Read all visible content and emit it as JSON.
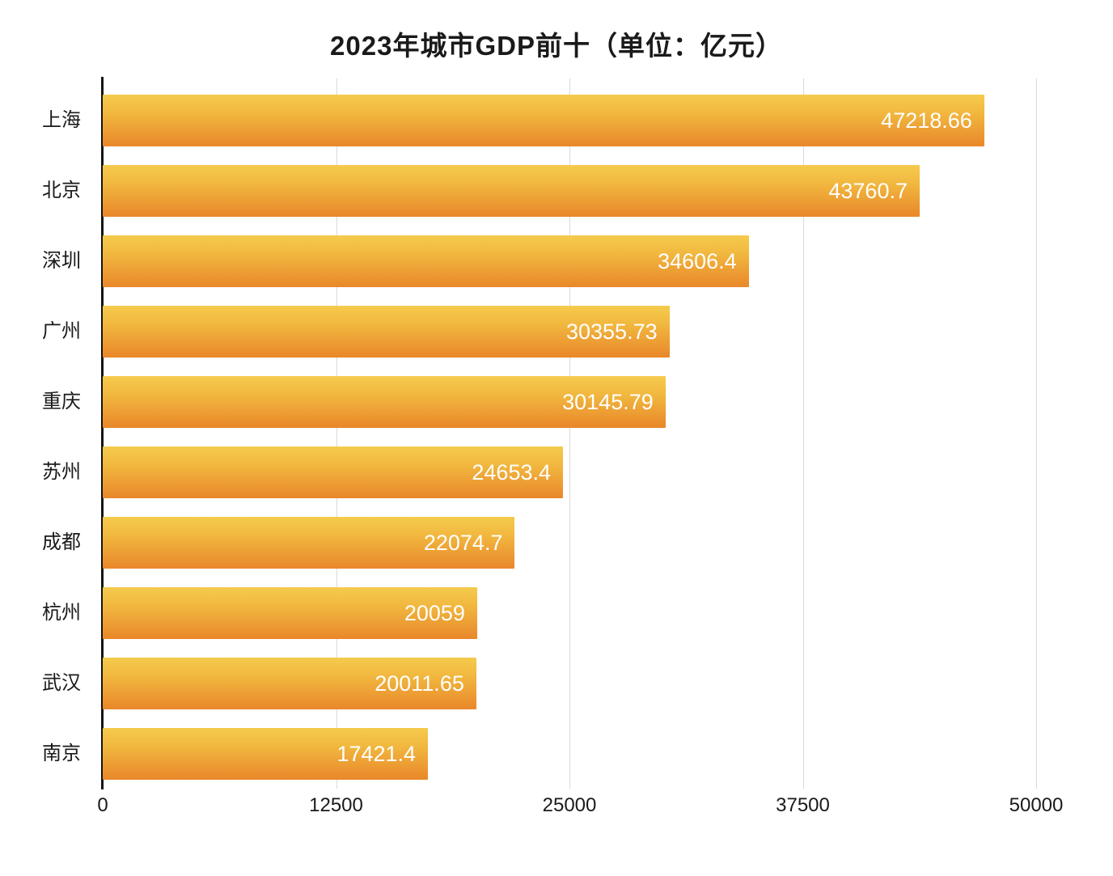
{
  "chart_data": {
    "type": "bar",
    "orientation": "horizontal",
    "title": "2023年城市GDP前十（单位：亿元）",
    "categories": [
      "上海",
      "北京",
      "深圳",
      "广州",
      "重庆",
      "苏州",
      "成都",
      "杭州",
      "武汉",
      "南京"
    ],
    "values": [
      47218.66,
      43760.7,
      34606.4,
      30355.73,
      30145.79,
      24653.4,
      22074.7,
      20059,
      20011.65,
      17421.4
    ],
    "value_labels": [
      "47218.66",
      "43760.7",
      "34606.4",
      "30355.73",
      "30145.79",
      "24653.4",
      "22074.7",
      "20059",
      "20011.65",
      "17421.4"
    ],
    "xlabel": "",
    "ylabel": "",
    "xlim": [
      0,
      50000
    ],
    "x_ticks": [
      0,
      12500,
      25000,
      37500,
      50000
    ],
    "x_tick_labels": [
      "0",
      "12500",
      "25000",
      "37500",
      "50000"
    ],
    "grid": true,
    "legend": false,
    "colors": {
      "bar_gradient_top": "#f5cb4d",
      "bar_gradient_bottom": "#e9872a",
      "value_text": "#ffffff",
      "axis_line": "#141414",
      "gridline": "#d9d9d9",
      "label_text": "#1a1a1a",
      "background": "#ffffff"
    }
  }
}
